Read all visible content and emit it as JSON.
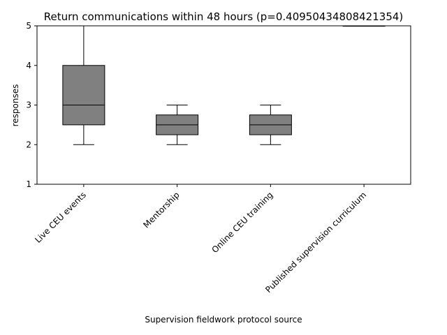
{
  "chart_data": {
    "type": "box",
    "title": "Return communications within 48 hours (p=0.40950434808421354)",
    "xlabel": "Supervision fieldwork protocol source",
    "ylabel": "responses",
    "ylim": [
      1,
      5
    ],
    "yticks": [
      "1",
      "2",
      "3",
      "4",
      "5"
    ],
    "grid": false,
    "categories": [
      "Live CEU events",
      "Mentorship",
      "Online CEU training",
      "Published supervision curriculum"
    ],
    "boxes": [
      {
        "whisker_low": 2,
        "q1": 2.5,
        "median": 3,
        "q3": 4,
        "whisker_high": 5
      },
      {
        "whisker_low": 2,
        "q1": 2.25,
        "median": 2.5,
        "q3": 2.75,
        "whisker_high": 3
      },
      {
        "whisker_low": 2,
        "q1": 2.25,
        "median": 2.5,
        "q3": 2.75,
        "whisker_high": 3
      },
      {
        "whisker_low": 5,
        "q1": 5,
        "median": 5,
        "q3": 5,
        "whisker_high": 5
      }
    ],
    "colors": {
      "box_fill": "#808080",
      "stroke": "#000000"
    }
  }
}
